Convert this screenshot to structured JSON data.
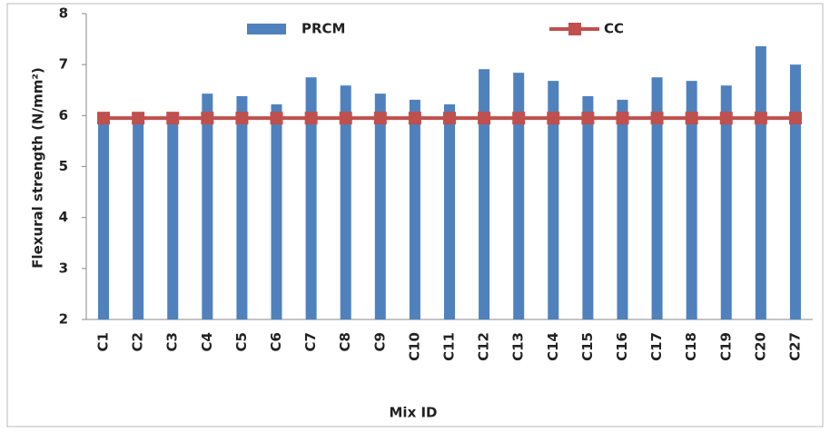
{
  "chart_data": {
    "type": "bar",
    "x_label": "Mix ID",
    "y_label": "Flexural strength (N/mm²)",
    "categories": [
      "C1",
      "C2",
      "C3",
      "C4",
      "C5",
      "C6",
      "C7",
      "C8",
      "C9",
      "C10",
      "C11",
      "C12",
      "C13",
      "C14",
      "C15",
      "C16",
      "C17",
      "C18",
      "C19",
      "C20",
      "C27"
    ],
    "series": [
      {
        "name": "PRCM",
        "type": "bar",
        "color": "#4f81bd",
        "values": [
          5.95,
          5.95,
          5.95,
          6.43,
          6.38,
          6.22,
          6.75,
          6.59,
          6.43,
          6.31,
          6.22,
          6.91,
          6.84,
          6.68,
          6.38,
          6.31,
          6.75,
          6.68,
          6.59,
          7.36,
          7.0
        ]
      },
      {
        "name": "CC",
        "type": "line",
        "color": "#c0504d",
        "values": [
          5.95,
          5.95,
          5.95,
          5.95,
          5.95,
          5.95,
          5.95,
          5.95,
          5.95,
          5.95,
          5.95,
          5.95,
          5.95,
          5.95,
          5.95,
          5.95,
          5.95,
          5.95,
          5.95,
          5.95,
          5.95
        ]
      }
    ],
    "ylim": [
      2,
      8
    ],
    "yticks": [
      2,
      3,
      4,
      5,
      6,
      7,
      8
    ],
    "grid": false
  }
}
